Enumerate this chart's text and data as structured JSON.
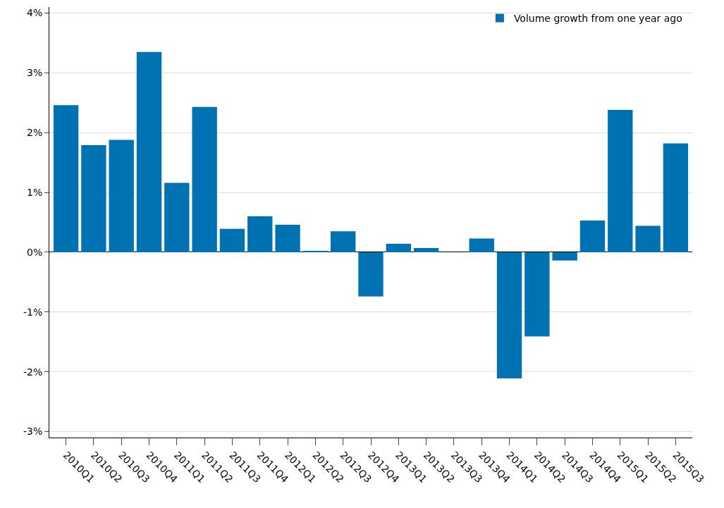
{
  "chart_data": {
    "type": "bar",
    "categories": [
      "2010Q1",
      "2010Q2",
      "2010Q3",
      "2010Q4",
      "2011Q1",
      "2011Q2",
      "2011Q3",
      "2011Q4",
      "2012Q1",
      "2012Q2",
      "2012Q3",
      "2012Q4",
      "2013Q1",
      "2013Q2",
      "2013Q3",
      "2013Q4",
      "2014Q1",
      "2014Q2",
      "2014Q3",
      "2014Q4",
      "2015Q1",
      "2015Q2",
      "2015Q3"
    ],
    "series": [
      {
        "name": "Volume growth from one year ago",
        "color": "#0072b2",
        "values": [
          2.46,
          1.79,
          1.88,
          3.35,
          1.16,
          2.43,
          0.39,
          0.6,
          0.46,
          0.02,
          0.35,
          -0.74,
          0.14,
          0.07,
          0,
          0.23,
          -2.11,
          -1.41,
          -0.14,
          0.53,
          2.38,
          0.44,
          1.82
        ]
      }
    ],
    "ylim": [
      -3.1,
      4.1
    ],
    "yticks": [
      {
        "value": -3,
        "label": "-3%"
      },
      {
        "value": -2,
        "label": "-2%"
      },
      {
        "value": -1,
        "label": "-1%"
      },
      {
        "value": 0,
        "label": "0%"
      },
      {
        "value": 1,
        "label": "1%"
      },
      {
        "value": 2,
        "label": "2%"
      },
      {
        "value": 3,
        "label": "3%"
      },
      {
        "value": 4,
        "label": "4%"
      }
    ],
    "grid": "y",
    "legend": "top right"
  }
}
